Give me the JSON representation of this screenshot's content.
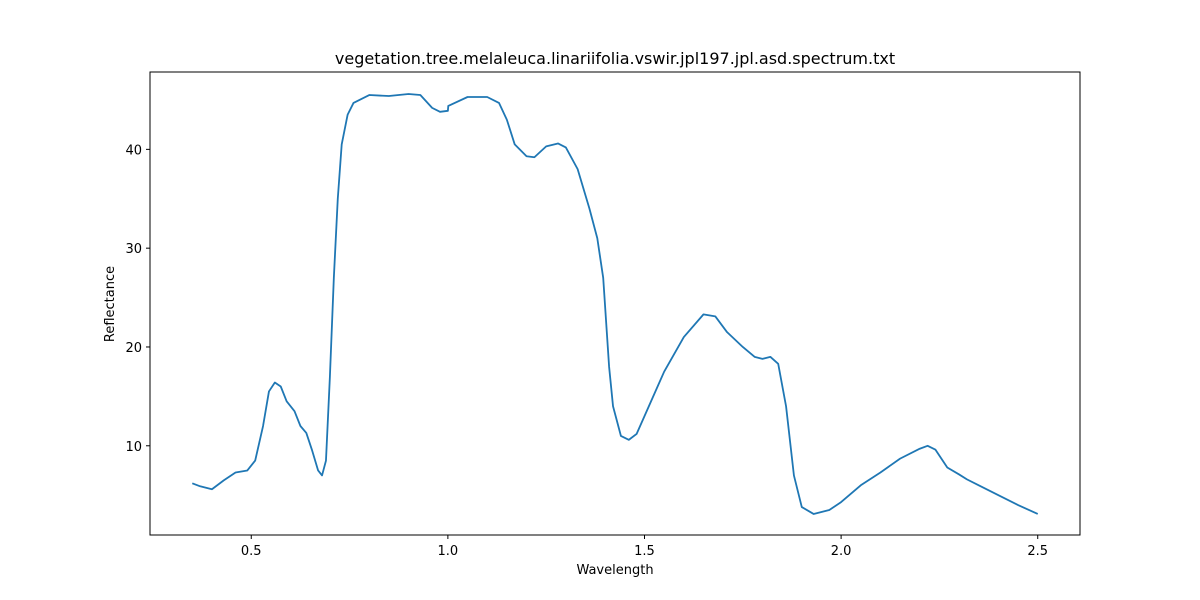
{
  "chart_data": {
    "type": "line",
    "title": "vegetation.tree.melaleuca.linariifolia.vswir.jpl197.jpl.asd.spectrum.txt",
    "x_label": "Wavelength",
    "y_label": "Reflectance",
    "color": "#1f77b4",
    "x": [
      0.35,
      0.37,
      0.4,
      0.43,
      0.46,
      0.49,
      0.51,
      0.53,
      0.545,
      0.56,
      0.575,
      0.59,
      0.61,
      0.625,
      0.64,
      0.655,
      0.67,
      0.68,
      0.69,
      0.7,
      0.71,
      0.72,
      0.73,
      0.745,
      0.76,
      0.8,
      0.85,
      0.9,
      0.93,
      0.96,
      0.98,
      1.0,
      1.001,
      1.05,
      1.1,
      1.13,
      1.15,
      1.17,
      1.2,
      1.22,
      1.25,
      1.28,
      1.3,
      1.33,
      1.36,
      1.38,
      1.395,
      1.41,
      1.42,
      1.44,
      1.46,
      1.48,
      1.5,
      1.55,
      1.6,
      1.65,
      1.68,
      1.71,
      1.75,
      1.78,
      1.8,
      1.82,
      1.84,
      1.86,
      1.88,
      1.9,
      1.93,
      1.97,
      2.0,
      2.05,
      2.1,
      2.15,
      2.2,
      2.22,
      2.24,
      2.27,
      2.3,
      2.32,
      2.35,
      2.4,
      2.45,
      2.5
    ],
    "values": [
      6.2,
      5.9,
      5.6,
      6.5,
      7.3,
      7.5,
      8.5,
      12,
      15.5,
      16.4,
      16,
      14.5,
      13.5,
      12,
      11.3,
      9.5,
      7.5,
      7,
      8.5,
      17,
      27,
      35,
      40.5,
      43.5,
      44.7,
      45.5,
      45.4,
      45.6,
      45.5,
      44.2,
      43.8,
      43.9,
      44.4,
      45.3,
      45.3,
      44.7,
      43,
      40.5,
      39.3,
      39.2,
      40.3,
      40.6,
      40.2,
      38,
      34,
      31,
      27,
      18,
      14,
      11,
      10.6,
      11.2,
      13,
      17.5,
      21,
      23.3,
      23.1,
      21.5,
      20,
      19,
      18.8,
      19,
      18.3,
      14,
      7,
      3.8,
      3.1,
      3.5,
      4.3,
      6,
      7.3,
      8.7,
      9.7,
      10,
      9.6,
      7.8,
      7.1,
      6.6,
      6,
      5,
      4,
      3.1
    ],
    "xlim": [
      0.2425,
      2.6075
    ],
    "xticks": [
      0.5,
      {
        "value": 1.0,
        "label": "1.0"
      },
      1.5,
      {
        "value": 2.0,
        "label": "2.0"
      },
      2.5
    ],
    "ylim": [
      0.97,
      47.83
    ],
    "yticks": [
      10,
      20,
      30,
      40
    ]
  }
}
